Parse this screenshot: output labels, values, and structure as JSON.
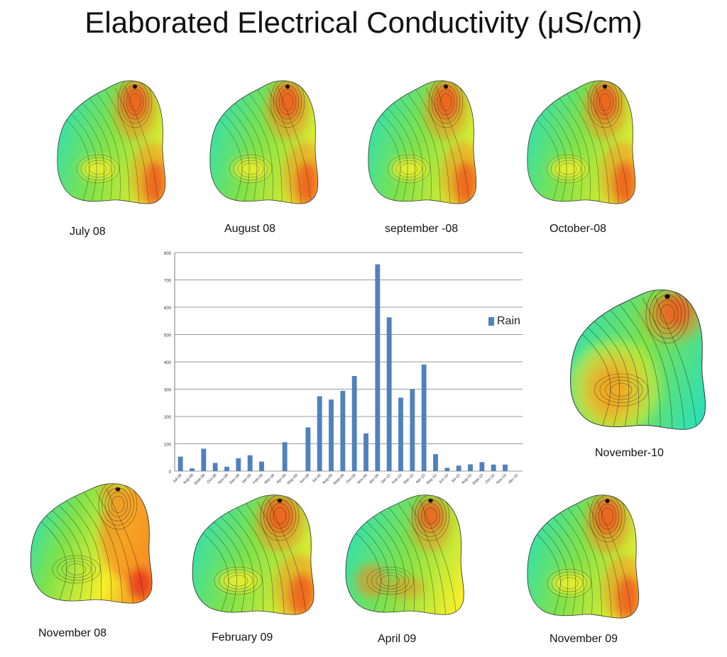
{
  "title": "Elaborated Electrical Conductivity (μS/cm)",
  "maps": [
    {
      "id": "jul08",
      "label": "July 08",
      "scheme": "A"
    },
    {
      "id": "aug08",
      "label": "August 08",
      "scheme": "A"
    },
    {
      "id": "sep08",
      "label": "september -08",
      "scheme": "A"
    },
    {
      "id": "oct08",
      "label": "October-08",
      "scheme": "A"
    },
    {
      "id": "nov10",
      "label": "November-10",
      "scheme": "C"
    },
    {
      "id": "nov08",
      "label": "November 08",
      "scheme": "B"
    },
    {
      "id": "feb09",
      "label": "February 09",
      "scheme": "A"
    },
    {
      "id": "apr09",
      "label": "April 09",
      "scheme": "D"
    },
    {
      "id": "nov09",
      "label": "November 09",
      "scheme": "A"
    }
  ],
  "colors": {
    "bar": "#4f81bd",
    "grid": "#9a9a9a",
    "map_red": "#e8321e",
    "map_orange": "#f58a1f",
    "map_yellow": "#f6ef2a",
    "map_green": "#7fe24a",
    "map_cyan": "#2ee0b4"
  },
  "chart_data": {
    "type": "bar",
    "categories": [
      "Jul-08",
      "Aug-08",
      "Sept-08",
      "Oct-08",
      "Nov-08",
      "Dec-08",
      "Jan-09",
      "Feb-09",
      "Mar-09",
      "Apr-09",
      "May-09",
      "Jun-09",
      "Jul-09",
      "Aug-09",
      "Sept-09",
      "Oct-09",
      "Nov-09",
      "dec-09",
      "Jan-10",
      "Feb-10",
      "Mar-10",
      "Apr-10",
      "May-10",
      "Jun-10",
      "Jul-10",
      "Aug-10",
      "Sept-10",
      "Oct-10",
      "Nov-10",
      "dec-10"
    ],
    "series": [
      {
        "name": "Rain",
        "values": [
          53,
          10,
          82,
          30,
          16,
          47,
          58,
          35,
          0,
          106,
          0,
          160,
          274,
          262,
          294,
          348,
          138,
          757,
          563,
          269,
          300,
          390,
          62,
          12,
          20,
          25,
          33,
          24,
          24,
          0
        ]
      }
    ],
    "ylim": [
      0,
      800
    ],
    "yticks": [
      0,
      100,
      200,
      300,
      400,
      500,
      600,
      700,
      800
    ],
    "grid": true,
    "legend": "right",
    "title": "",
    "xlabel": "",
    "ylabel": ""
  }
}
